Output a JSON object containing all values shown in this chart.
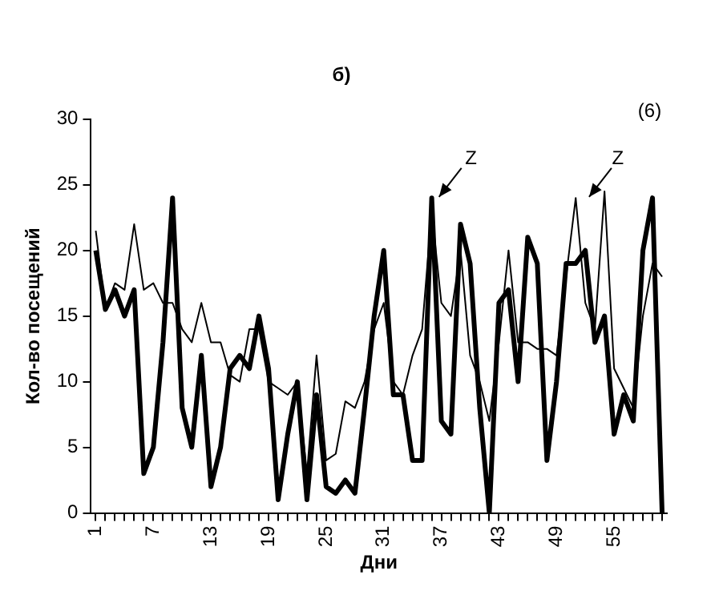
{
  "chart_data": {
    "type": "line",
    "title": "б)",
    "xlabel": "Дни",
    "ylabel": "Кол-во посещений",
    "categories": [
      "1",
      null,
      null,
      null,
      null,
      null,
      "7",
      null,
      null,
      null,
      null,
      null,
      "13",
      null,
      null,
      null,
      null,
      null,
      "19",
      null,
      null,
      null,
      null,
      null,
      "25",
      null,
      null,
      null,
      null,
      null,
      "31",
      null,
      null,
      null,
      null,
      null,
      "37",
      null,
      null,
      null,
      null,
      null,
      "43",
      null,
      null,
      null,
      null,
      null,
      "49",
      null,
      null,
      null,
      null,
      null,
      "55",
      null,
      null,
      null,
      null,
      null
    ],
    "series": [
      {
        "color": "#000000",
        "values": [
          20,
          15.5,
          17,
          15,
          17,
          3,
          5,
          13,
          24,
          8,
          5,
          12,
          2,
          5,
          11,
          12,
          11,
          15,
          11,
          1,
          6,
          10,
          1,
          9,
          2,
          1.5,
          2.5,
          1.5,
          8,
          15,
          20,
          9,
          9,
          4,
          4,
          24,
          7,
          6,
          22,
          19,
          8,
          0,
          16,
          17,
          10,
          21,
          19,
          4,
          10,
          19,
          19,
          20,
          13,
          15,
          6,
          9,
          7,
          20,
          24,
          0
        ]
      },
      {
        "color": "#000000",
        "values": [
          21.5,
          15.5,
          17.5,
          17,
          22,
          17,
          17.5,
          16,
          16,
          14,
          13,
          16,
          13,
          13,
          10.5,
          10,
          14,
          14,
          10,
          9.5,
          9,
          10,
          3,
          12,
          4,
          4.5,
          8.5,
          8,
          10,
          14,
          16,
          10,
          9,
          12,
          14,
          23,
          16,
          15,
          20,
          12,
          10,
          7,
          13,
          20,
          13,
          13,
          12.5,
          12.5,
          12,
          18,
          24,
          16,
          14,
          24.5,
          11,
          9.5,
          8,
          15,
          19,
          18
        ]
      }
    ],
    "ylim": [
      0,
      30
    ],
    "yticks": [
      0,
      5,
      10,
      15,
      20,
      25,
      30
    ],
    "grid": false,
    "legend": false,
    "marker": "none",
    "line_style": "solid",
    "annotations": [
      "Z",
      "Z",
      "(6)"
    ]
  }
}
